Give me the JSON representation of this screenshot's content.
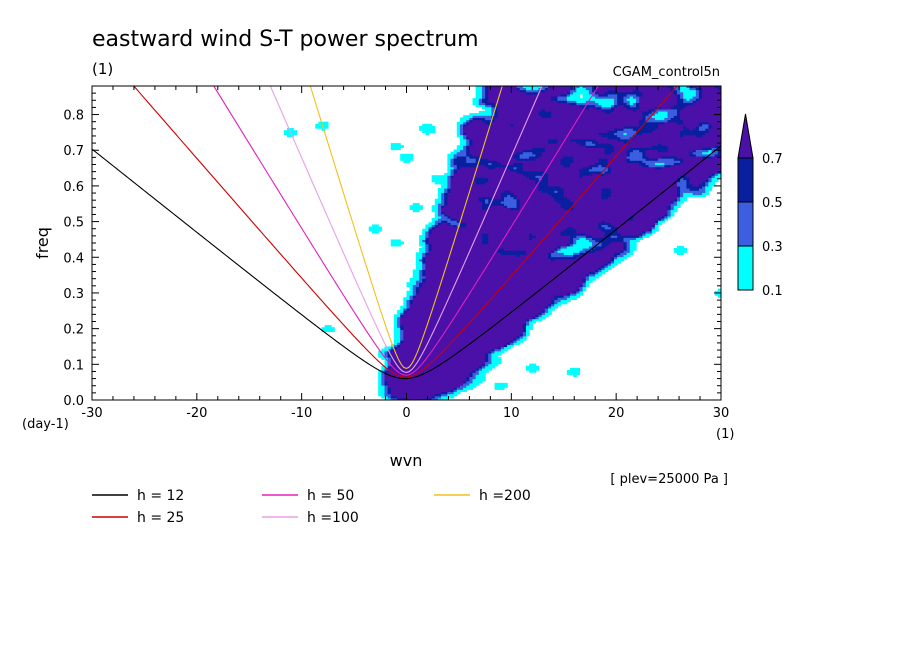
{
  "chart_data": {
    "type": "heatmap",
    "title": "eastward wind S-T power spectrum",
    "unit_label": "(1)",
    "dataset": "CGAM_control5n",
    "xlabel": "wvn",
    "ylabel": "freq",
    "x_unit": "(1)",
    "y_unit": "(day-1)",
    "level_note": "[ plev=25000 Pa ]",
    "xlim": [
      -30,
      30
    ],
    "ylim": [
      0,
      0.88
    ],
    "x_ticks": [
      "-30",
      "-20",
      "-10",
      "0",
      "10",
      "20",
      "30"
    ],
    "y_ticks": [
      "0.0",
      "0.1",
      "0.2",
      "0.3",
      "0.4",
      "0.5",
      "0.6",
      "0.7",
      "0.8"
    ],
    "colorbar": {
      "levels": [
        "0.1",
        "0.3",
        "0.5",
        "0.7"
      ],
      "colors": [
        "#00ffff",
        "#3b5fe0",
        "#0a1fa0",
        "#4b10a8"
      ]
    },
    "dispersion_curves": [
      {
        "label": "h = 12",
        "h": 12,
        "color": "#000000"
      },
      {
        "label": "h = 25",
        "h": 25,
        "color": "#cc0000"
      },
      {
        "label": "h = 50",
        "h": 50,
        "color": "#e020c0"
      },
      {
        "label": "h =100",
        "h": 100,
        "color": "#e8a0e8"
      },
      {
        "label": "h =200",
        "h": 200,
        "color": "#f0c020"
      }
    ]
  }
}
